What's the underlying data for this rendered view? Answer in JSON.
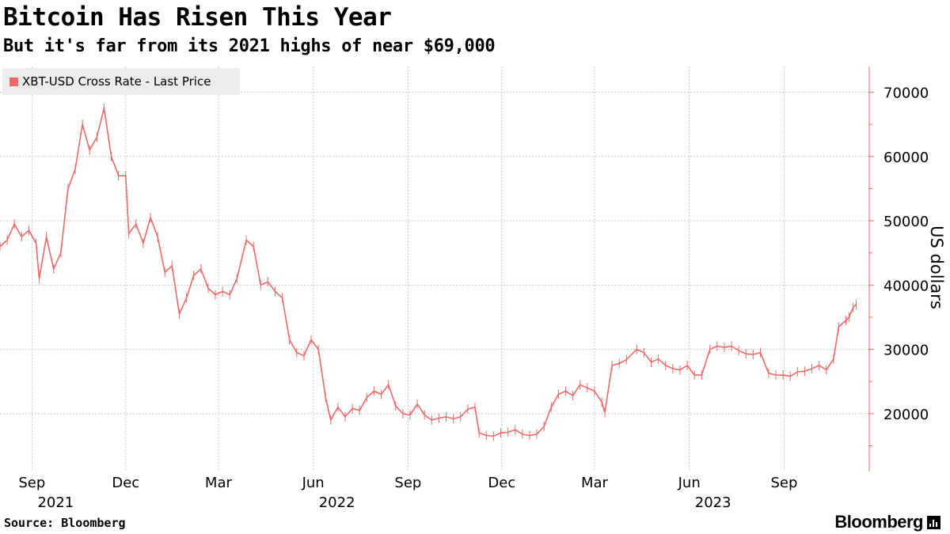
{
  "header": {
    "title": "Bitcoin Has Risen This Year",
    "subtitle": "But it's far from its 2021 highs of near $69,000"
  },
  "footer": {
    "source": "Source: Bloomberg",
    "brand": "Bloomberg"
  },
  "colors": {
    "series": "#ee6a6a",
    "grid": "#c8c8c8",
    "legend_bg": "#ececec"
  },
  "chart_data": {
    "type": "line",
    "title": "Bitcoin Has Risen This Year",
    "subtitle": "But it's far from its 2021 highs of near $69,000",
    "ylabel": "US dollars",
    "y_axis_position": "right",
    "ylim": [
      11000,
      74000
    ],
    "y_ticks": [
      20000,
      30000,
      40000,
      50000,
      60000,
      70000
    ],
    "y_tick_labels": [
      "20000",
      "30000",
      "40000",
      "50000",
      "60000",
      "70000"
    ],
    "xlim": [
      "2021-08-01",
      "2023-11-10"
    ],
    "x_ticks": [
      {
        "date": "2021-09-01",
        "label": "Sep",
        "year": "2021"
      },
      {
        "date": "2021-12-01",
        "label": "Dec",
        "year": ""
      },
      {
        "date": "2022-03-01",
        "label": "Mar",
        "year": ""
      },
      {
        "date": "2022-06-01",
        "label": "Jun",
        "year": "2022"
      },
      {
        "date": "2022-09-01",
        "label": "Sep",
        "year": ""
      },
      {
        "date": "2022-12-01",
        "label": "Dec",
        "year": ""
      },
      {
        "date": "2023-03-01",
        "label": "Mar",
        "year": ""
      },
      {
        "date": "2023-06-01",
        "label": "Jun",
        "year": "2023"
      },
      {
        "date": "2023-09-01",
        "label": "Sep",
        "year": ""
      }
    ],
    "grid": true,
    "legend_position": "top-left",
    "series": [
      {
        "name": "XBT-USD Cross Rate - Last Price",
        "color": "#ee6a6a",
        "points": [
          [
            "2021-08-01",
            46000
          ],
          [
            "2021-08-08",
            47000
          ],
          [
            "2021-08-15",
            49500
          ],
          [
            "2021-08-22",
            47500
          ],
          [
            "2021-08-29",
            48500
          ],
          [
            "2021-09-05",
            46500
          ],
          [
            "2021-09-08",
            41000
          ],
          [
            "2021-09-15",
            47500
          ],
          [
            "2021-09-22",
            42500
          ],
          [
            "2021-09-29",
            45000
          ],
          [
            "2021-10-06",
            55000
          ],
          [
            "2021-10-13",
            58000
          ],
          [
            "2021-10-20",
            65000
          ],
          [
            "2021-10-27",
            61000
          ],
          [
            "2021-11-03",
            63000
          ],
          [
            "2021-11-10",
            67500
          ],
          [
            "2021-11-17",
            60000
          ],
          [
            "2021-11-24",
            57000
          ],
          [
            "2021-12-01",
            57000
          ],
          [
            "2021-12-04",
            48000
          ],
          [
            "2021-12-11",
            49500
          ],
          [
            "2021-12-18",
            46500
          ],
          [
            "2021-12-25",
            50500
          ],
          [
            "2022-01-01",
            47500
          ],
          [
            "2022-01-08",
            42000
          ],
          [
            "2022-01-15",
            43000
          ],
          [
            "2022-01-22",
            35500
          ],
          [
            "2022-01-29",
            38000
          ],
          [
            "2022-02-05",
            41500
          ],
          [
            "2022-02-12",
            42500
          ],
          [
            "2022-02-19",
            39500
          ],
          [
            "2022-02-26",
            38500
          ],
          [
            "2022-03-05",
            39000
          ],
          [
            "2022-03-12",
            38500
          ],
          [
            "2022-03-19",
            41000
          ],
          [
            "2022-03-28",
            47000
          ],
          [
            "2022-04-04",
            46000
          ],
          [
            "2022-04-11",
            40000
          ],
          [
            "2022-04-18",
            40500
          ],
          [
            "2022-04-25",
            39000
          ],
          [
            "2022-05-02",
            38000
          ],
          [
            "2022-05-09",
            31500
          ],
          [
            "2022-05-16",
            29500
          ],
          [
            "2022-05-23",
            29000
          ],
          [
            "2022-05-30",
            31500
          ],
          [
            "2022-06-06",
            30000
          ],
          [
            "2022-06-13",
            22500
          ],
          [
            "2022-06-18",
            19000
          ],
          [
            "2022-06-25",
            21000
          ],
          [
            "2022-07-02",
            19500
          ],
          [
            "2022-07-09",
            20800
          ],
          [
            "2022-07-16",
            20500
          ],
          [
            "2022-07-23",
            22500
          ],
          [
            "2022-07-30",
            23500
          ],
          [
            "2022-08-06",
            23000
          ],
          [
            "2022-08-13",
            24500
          ],
          [
            "2022-08-20",
            21200
          ],
          [
            "2022-08-27",
            20000
          ],
          [
            "2022-09-03",
            19800
          ],
          [
            "2022-09-10",
            21500
          ],
          [
            "2022-09-17",
            19800
          ],
          [
            "2022-09-24",
            19000
          ],
          [
            "2022-10-01",
            19300
          ],
          [
            "2022-10-08",
            19500
          ],
          [
            "2022-10-15",
            19200
          ],
          [
            "2022-10-22",
            19500
          ],
          [
            "2022-10-29",
            20700
          ],
          [
            "2022-11-05",
            21000
          ],
          [
            "2022-11-09",
            17000
          ],
          [
            "2022-11-16",
            16600
          ],
          [
            "2022-11-23",
            16500
          ],
          [
            "2022-11-30",
            17000
          ],
          [
            "2022-12-07",
            17100
          ],
          [
            "2022-12-14",
            17500
          ],
          [
            "2022-12-21",
            16800
          ],
          [
            "2022-12-28",
            16600
          ],
          [
            "2023-01-04",
            16800
          ],
          [
            "2023-01-11",
            18000
          ],
          [
            "2023-01-18",
            21000
          ],
          [
            "2023-01-25",
            23000
          ],
          [
            "2023-02-01",
            23500
          ],
          [
            "2023-02-08",
            22800
          ],
          [
            "2023-02-15",
            24500
          ],
          [
            "2023-02-22",
            24000
          ],
          [
            "2023-03-01",
            23500
          ],
          [
            "2023-03-08",
            21800
          ],
          [
            "2023-03-11",
            20200
          ],
          [
            "2023-03-18",
            27500
          ],
          [
            "2023-03-25",
            27800
          ],
          [
            "2023-04-01",
            28400
          ],
          [
            "2023-04-11",
            30000
          ],
          [
            "2023-04-18",
            29500
          ],
          [
            "2023-04-25",
            28000
          ],
          [
            "2023-05-02",
            28500
          ],
          [
            "2023-05-09",
            27500
          ],
          [
            "2023-05-16",
            27000
          ],
          [
            "2023-05-23",
            26800
          ],
          [
            "2023-05-30",
            27500
          ],
          [
            "2023-06-06",
            26000
          ],
          [
            "2023-06-13",
            26000
          ],
          [
            "2023-06-21",
            30000
          ],
          [
            "2023-06-28",
            30500
          ],
          [
            "2023-07-05",
            30300
          ],
          [
            "2023-07-12",
            30500
          ],
          [
            "2023-07-19",
            29800
          ],
          [
            "2023-07-26",
            29300
          ],
          [
            "2023-08-02",
            29200
          ],
          [
            "2023-08-09",
            29500
          ],
          [
            "2023-08-17",
            26300
          ],
          [
            "2023-08-24",
            26000
          ],
          [
            "2023-08-31",
            26000
          ],
          [
            "2023-09-07",
            25800
          ],
          [
            "2023-09-14",
            26500
          ],
          [
            "2023-09-21",
            26600
          ],
          [
            "2023-09-28",
            27000
          ],
          [
            "2023-10-05",
            27500
          ],
          [
            "2023-10-12",
            26800
          ],
          [
            "2023-10-19",
            28500
          ],
          [
            "2023-10-24",
            33500
          ],
          [
            "2023-10-31",
            34500
          ],
          [
            "2023-11-03",
            35000
          ],
          [
            "2023-11-07",
            36500
          ],
          [
            "2023-11-10",
            37000
          ]
        ]
      }
    ]
  }
}
